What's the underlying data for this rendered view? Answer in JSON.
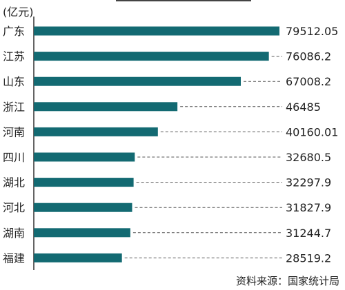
{
  "chart_data": {
    "type": "bar",
    "orientation": "horizontal",
    "unit_label": "(亿元)",
    "source": "资料来源：国家统计局",
    "categories": [
      "广东",
      "江苏",
      "山东",
      "浙江",
      "河南",
      "四川",
      "湖北",
      "河北",
      "湖南",
      "福建"
    ],
    "values": [
      79512.05,
      76086.2,
      67008.2,
      46485,
      40160.01,
      32680.5,
      32297.9,
      31827.9,
      31244.7,
      28519.2
    ],
    "value_labels": [
      "79512.05",
      "76086.2",
      "67008.2",
      "46485",
      "40160.01",
      "32680.5",
      "32297.9",
      "31827.9",
      "31244.7",
      "28519.2"
    ],
    "xlim": [
      0,
      79512.05
    ],
    "bar_color": "#136a72",
    "leader_color": "#555555",
    "grid": false
  }
}
